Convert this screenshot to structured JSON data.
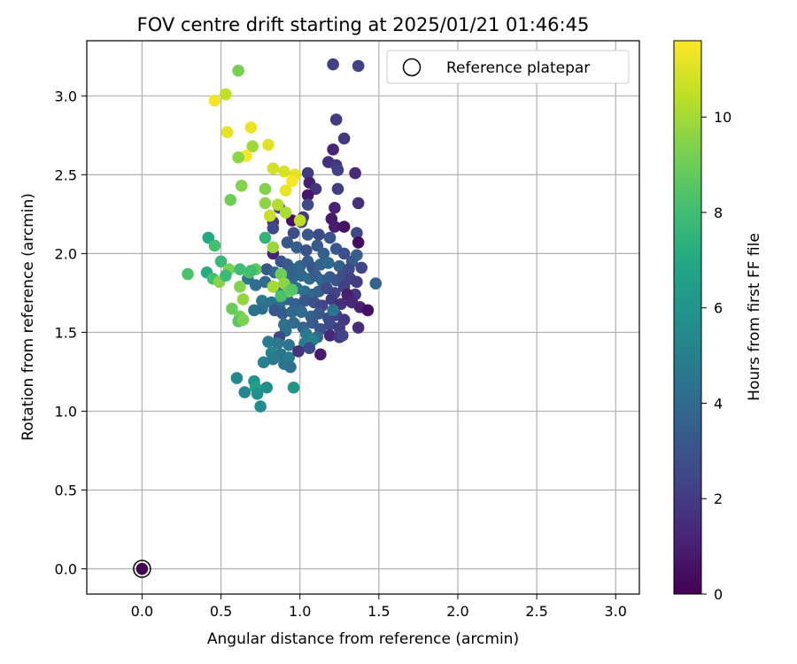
{
  "chart_data": {
    "type": "scatter",
    "title": "FOV centre drift starting at 2025/01/21 01:46:45",
    "xlabel": "Angular distance from reference (arcmin)",
    "ylabel": "Rotation from reference (arcmin)",
    "xlim": [
      -0.35,
      3.15
    ],
    "ylim": [
      -0.16,
      3.35
    ],
    "xticks": [
      "0.0",
      "0.5",
      "1.0",
      "1.5",
      "2.0",
      "2.5",
      "3.0"
    ],
    "yticks": [
      "0.0",
      "0.5",
      "1.0",
      "1.5",
      "2.0",
      "2.5",
      "3.0"
    ],
    "grid": true,
    "legend_position": "top-right",
    "legend": [
      "Reference platepar"
    ],
    "colormap": "viridis",
    "colorbar": {
      "label": "Hours from first FF file",
      "range": [
        0,
        11.6
      ],
      "ticks": [
        "0",
        "2",
        "4",
        "6",
        "8",
        "10"
      ]
    },
    "reference_point": {
      "x": 0.0,
      "y": 0.0,
      "hours": 0
    },
    "points": [
      [
        1.21,
        3.2,
        2.2
      ],
      [
        1.37,
        3.19,
        2.3
      ],
      [
        1.23,
        2.85,
        2.0
      ],
      [
        1.28,
        2.73,
        1.9
      ],
      [
        1.21,
        2.66,
        1.2
      ],
      [
        1.18,
        2.58,
        1.6
      ],
      [
        1.23,
        2.56,
        1.8
      ],
      [
        1.24,
        2.53,
        2.2
      ],
      [
        1.35,
        2.51,
        1.4
      ],
      [
        1.05,
        2.51,
        2.0
      ],
      [
        1.06,
        2.45,
        1.0
      ],
      [
        1.1,
        2.41,
        1.7
      ],
      [
        1.05,
        2.37,
        0.7
      ],
      [
        1.24,
        2.41,
        2.1
      ],
      [
        1.05,
        2.31,
        2.6
      ],
      [
        1.37,
        2.32,
        1.6
      ],
      [
        1.22,
        2.29,
        1.1
      ],
      [
        1.02,
        2.23,
        2.1
      ],
      [
        1.01,
        2.2,
        2.3
      ],
      [
        0.95,
        2.21,
        0.5
      ],
      [
        1.2,
        2.22,
        0.8
      ],
      [
        1.22,
        2.17,
        1.0
      ],
      [
        1.28,
        2.17,
        0.6
      ],
      [
        0.83,
        2.2,
        1.9
      ],
      [
        0.96,
        2.13,
        2.7
      ],
      [
        1.05,
        2.12,
        3.2
      ],
      [
        1.12,
        2.12,
        2.6
      ],
      [
        1.19,
        2.1,
        2.9
      ],
      [
        1.36,
        2.13,
        2.6
      ],
      [
        1.37,
        2.07,
        0.4
      ],
      [
        0.83,
        2.0,
        1.1
      ],
      [
        0.92,
        2.07,
        3.1
      ],
      [
        0.98,
        2.04,
        3.4
      ],
      [
        1.04,
        2.02,
        3.0
      ],
      [
        1.11,
        2.05,
        3.3
      ],
      [
        1.15,
        2.0,
        3.5
      ],
      [
        1.23,
        2.03,
        3.2
      ],
      [
        1.28,
        2.0,
        2.8
      ],
      [
        1.36,
        1.99,
        3.6
      ],
      [
        1.33,
        1.95,
        3.4
      ],
      [
        0.88,
        1.95,
        3.0
      ],
      [
        0.92,
        1.93,
        3.3
      ],
      [
        0.96,
        1.9,
        3.6
      ],
      [
        1.0,
        1.92,
        3.8
      ],
      [
        1.05,
        1.95,
        3.4
      ],
      [
        1.08,
        1.91,
        3.1
      ],
      [
        1.13,
        1.93,
        3.6
      ],
      [
        1.18,
        1.94,
        3.9
      ],
      [
        1.25,
        1.92,
        3.5
      ],
      [
        1.31,
        1.9,
        2.6
      ],
      [
        1.39,
        1.91,
        2.4
      ],
      [
        1.48,
        1.81,
        3.7
      ],
      [
        0.79,
        1.9,
        3.2
      ],
      [
        0.84,
        1.88,
        3.8
      ],
      [
        0.9,
        1.86,
        4.0
      ],
      [
        0.95,
        1.84,
        3.7
      ],
      [
        1.01,
        1.86,
        3.9
      ],
      [
        1.06,
        1.84,
        4.1
      ],
      [
        1.1,
        1.86,
        3.4
      ],
      [
        1.14,
        1.83,
        3.8
      ],
      [
        1.19,
        1.85,
        3.3
      ],
      [
        1.23,
        1.83,
        3.1
      ],
      [
        1.27,
        1.86,
        2.8
      ],
      [
        1.32,
        1.84,
        2.3
      ],
      [
        1.36,
        1.82,
        2.0
      ],
      [
        0.67,
        1.84,
        4.6
      ],
      [
        0.72,
        1.8,
        4.2
      ],
      [
        0.78,
        1.82,
        4.0
      ],
      [
        0.83,
        1.79,
        4.3
      ],
      [
        0.88,
        1.77,
        4.2
      ],
      [
        0.93,
        1.79,
        4.5
      ],
      [
        0.98,
        1.78,
        4.4
      ],
      [
        1.03,
        1.76,
        4.2
      ],
      [
        1.08,
        1.74,
        3.9
      ],
      [
        1.12,
        1.76,
        3.6
      ],
      [
        1.17,
        1.78,
        2.6
      ],
      [
        1.22,
        1.75,
        2.4
      ],
      [
        1.28,
        1.79,
        2.2
      ],
      [
        1.35,
        1.74,
        1.8
      ],
      [
        1.3,
        1.74,
        1.0
      ],
      [
        0.76,
        1.7,
        4.7
      ],
      [
        0.82,
        1.69,
        4.4
      ],
      [
        0.87,
        1.66,
        4.1
      ],
      [
        0.92,
        1.71,
        3.8
      ],
      [
        0.97,
        1.68,
        3.5
      ],
      [
        1.03,
        1.7,
        3.2
      ],
      [
        1.09,
        1.69,
        2.9
      ],
      [
        1.14,
        1.67,
        2.4
      ],
      [
        1.2,
        1.71,
        2.0
      ],
      [
        1.26,
        1.68,
        1.6
      ],
      [
        1.33,
        1.69,
        1.4
      ],
      [
        1.38,
        1.66,
        1.1
      ],
      [
        1.43,
        1.64,
        0.5
      ],
      [
        0.71,
        1.64,
        4.4
      ],
      [
        0.76,
        1.65,
        4.2
      ],
      [
        0.84,
        1.64,
        3.1
      ],
      [
        0.89,
        1.62,
        3.3
      ],
      [
        0.95,
        1.63,
        3.9
      ],
      [
        1.01,
        1.63,
        4.0
      ],
      [
        1.07,
        1.6,
        3.6
      ],
      [
        1.12,
        1.62,
        3.2
      ],
      [
        1.18,
        1.59,
        2.8
      ],
      [
        1.23,
        1.61,
        2.3
      ],
      [
        1.28,
        1.58,
        1.9
      ],
      [
        1.21,
        1.64,
        4.5
      ],
      [
        0.9,
        1.55,
        4.3
      ],
      [
        0.96,
        1.56,
        4.0
      ],
      [
        1.02,
        1.53,
        3.8
      ],
      [
        1.08,
        1.56,
        3.3
      ],
      [
        1.13,
        1.52,
        2.9
      ],
      [
        1.19,
        1.55,
        2.5
      ],
      [
        1.25,
        1.53,
        2.1
      ],
      [
        1.37,
        1.53,
        1.5
      ],
      [
        0.91,
        1.51,
        4.2
      ],
      [
        0.87,
        1.47,
        2.4
      ],
      [
        1.04,
        1.49,
        4.6
      ],
      [
        1.11,
        1.47,
        3.9
      ],
      [
        1.19,
        1.48,
        1.3
      ],
      [
        1.25,
        1.47,
        2.0
      ],
      [
        1.27,
        1.48,
        2.4
      ],
      [
        0.8,
        1.44,
        4.9
      ],
      [
        0.86,
        1.43,
        4.7
      ],
      [
        0.93,
        1.42,
        4.5
      ],
      [
        1.03,
        1.43,
        4.8
      ],
      [
        1.08,
        1.45,
        5.0
      ],
      [
        0.82,
        1.37,
        5.2
      ],
      [
        0.88,
        1.36,
        4.4
      ],
      [
        0.93,
        1.34,
        4.8
      ],
      [
        0.99,
        1.38,
        1.7
      ],
      [
        1.06,
        1.4,
        2.6
      ],
      [
        1.13,
        1.36,
        0.9
      ],
      [
        0.77,
        1.31,
        5.1
      ],
      [
        0.83,
        1.33,
        4.7
      ],
      [
        0.9,
        1.3,
        4.5
      ],
      [
        0.94,
        1.28,
        4.3
      ],
      [
        0.6,
        1.21,
        5.4
      ],
      [
        0.71,
        1.19,
        6.0
      ],
      [
        0.72,
        1.15,
        6.5
      ],
      [
        0.79,
        1.15,
        5.6
      ],
      [
        0.96,
        1.15,
        6.1
      ],
      [
        0.65,
        1.12,
        5.3
      ],
      [
        0.73,
        1.11,
        5.8
      ],
      [
        0.75,
        1.03,
        5.5
      ],
      [
        0.87,
        2.29,
        2.2
      ],
      [
        0.83,
        2.16,
        2.5
      ],
      [
        0.61,
        3.16,
        9.2
      ],
      [
        0.53,
        3.01,
        10.5
      ],
      [
        0.46,
        2.97,
        11.4
      ],
      [
        0.54,
        2.77,
        11.2
      ],
      [
        0.69,
        2.8,
        11.3
      ],
      [
        0.7,
        2.68,
        9.9
      ],
      [
        0.8,
        2.69,
        11.1
      ],
      [
        0.66,
        2.62,
        11.5
      ],
      [
        0.61,
        2.61,
        9.6
      ],
      [
        0.63,
        2.43,
        9.4
      ],
      [
        0.83,
        2.54,
        10.8
      ],
      [
        0.9,
        2.52,
        10.9
      ],
      [
        0.97,
        2.5,
        11.1
      ],
      [
        0.95,
        2.46,
        11.5
      ],
      [
        0.91,
        2.4,
        11.2
      ],
      [
        0.56,
        2.34,
        9.0
      ],
      [
        0.78,
        2.41,
        9.4
      ],
      [
        0.78,
        2.32,
        9.6
      ],
      [
        0.86,
        2.31,
        10.3
      ],
      [
        0.91,
        2.26,
        10.1
      ],
      [
        0.81,
        2.24,
        10.6
      ],
      [
        1.0,
        2.21,
        10.5
      ],
      [
        0.78,
        2.1,
        7.5
      ],
      [
        0.42,
        2.1,
        7.0
      ],
      [
        0.46,
        2.05,
        8.1
      ],
      [
        0.83,
        2.04,
        9.8
      ],
      [
        0.5,
        1.95,
        7.7
      ],
      [
        0.41,
        1.88,
        7.2
      ],
      [
        0.55,
        1.9,
        9.2
      ],
      [
        0.62,
        1.9,
        8.0
      ],
      [
        0.68,
        1.88,
        8.4
      ],
      [
        0.72,
        1.9,
        8.7
      ],
      [
        0.45,
        1.84,
        8.1
      ],
      [
        0.49,
        1.82,
        9.5
      ],
      [
        0.53,
        1.86,
        7.8
      ],
      [
        0.29,
        1.87,
        8.3
      ],
      [
        0.62,
        1.79,
        9.4
      ],
      [
        0.64,
        1.71,
        9.7
      ],
      [
        0.57,
        1.65,
        8.9
      ],
      [
        0.62,
        1.6,
        9.1
      ],
      [
        0.61,
        1.57,
        8.6
      ],
      [
        0.64,
        1.58,
        9.3
      ],
      [
        0.88,
        1.87,
        9.0
      ],
      [
        0.9,
        1.81,
        9.6
      ],
      [
        0.83,
        1.79,
        10.0
      ],
      [
        0.93,
        1.76,
        9.1
      ],
      [
        0.88,
        1.73,
        8.2
      ],
      [
        0.69,
        1.89,
        8.0
      ],
      [
        0.95,
        1.77,
        8.5
      ]
    ]
  }
}
